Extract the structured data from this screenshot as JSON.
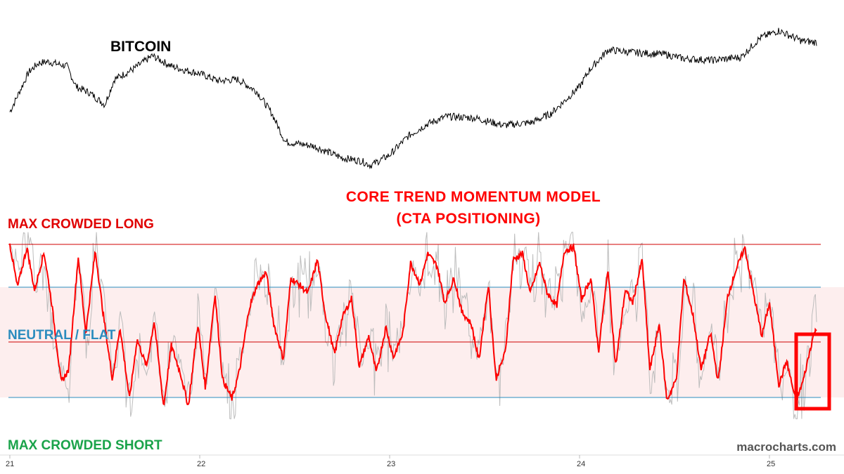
{
  "labels": {
    "bitcoin": "BITCOIN",
    "model_title_line1": "CORE TREND MOMENTUM MODEL",
    "model_title_line2": "(CTA POSITIONING)",
    "max_long": "MAX CROWDED LONG",
    "neutral": "NEUTRAL / FLAT",
    "max_short": "MAX CROWDED SHORT",
    "watermark": "macrocharts.com"
  },
  "colors": {
    "price_line": "#000000",
    "signal_line": "#ff0000",
    "raw_signal": "#bdbdbd",
    "neutral_zone": "#fdeeee",
    "threshold_red": "#d00000",
    "threshold_blue": "#2b8cbe",
    "highlight_box": "#ff0000"
  },
  "chart_data": [
    {
      "type": "line",
      "title": "BITCOIN",
      "x_tick_labels": [
        "21",
        "22",
        "23",
        "24",
        "25"
      ],
      "x": [
        21.0,
        21.1,
        21.15,
        21.2,
        21.3,
        21.35,
        21.42,
        21.5,
        21.55,
        21.65,
        21.75,
        21.85,
        21.93,
        22.0,
        22.1,
        22.2,
        22.3,
        22.38,
        22.45,
        22.6,
        22.75,
        22.85,
        22.9,
        23.0,
        23.1,
        23.2,
        23.3,
        23.45,
        23.6,
        23.75,
        23.85,
        24.0,
        24.05,
        24.15,
        24.3,
        24.45,
        24.55,
        24.7,
        24.85,
        24.95,
        25.05,
        25.1,
        25.17,
        25.25
      ],
      "values": [
        50,
        77,
        83,
        84,
        81,
        67,
        63,
        55,
        72,
        79,
        88,
        81,
        78,
        76,
        71,
        72,
        64,
        49,
        30,
        27,
        19,
        17,
        14,
        21,
        34,
        42,
        47,
        46,
        41,
        43,
        49,
        67,
        78,
        92,
        90,
        89,
        86,
        85,
        87,
        100,
        105,
        102,
        98,
        97
      ],
      "ylim": [
        0,
        110
      ]
    },
    {
      "type": "line",
      "title": "CORE TREND MOMENTUM MODEL (CTA POSITIONING)",
      "x_tick_labels": [
        "21",
        "22",
        "23",
        "24",
        "25"
      ],
      "reference_levels": {
        "max_crowded_long": 100,
        "upper_band": 75,
        "neutral": 50,
        "lower_band": 0
      },
      "neutral_zone": [
        0,
        75
      ],
      "x": [
        21.0,
        21.04,
        21.09,
        21.13,
        21.18,
        21.22,
        21.27,
        21.31,
        21.36,
        21.4,
        21.45,
        21.49,
        21.54,
        21.58,
        21.63,
        21.67,
        21.72,
        21.76,
        21.81,
        21.85,
        21.9,
        21.94,
        21.99,
        22.03,
        22.08,
        22.12,
        22.17,
        22.21,
        22.26,
        22.3,
        22.35,
        22.39,
        22.44,
        22.48,
        22.53,
        22.57,
        22.62,
        22.66,
        22.71,
        22.75,
        22.8,
        22.84,
        22.89,
        22.93,
        22.98,
        23.02,
        23.07,
        23.11,
        23.16,
        23.2,
        23.25,
        23.29,
        23.34,
        23.38,
        23.43,
        23.47,
        23.52,
        23.56,
        23.61,
        23.65,
        23.7,
        23.74,
        23.79,
        23.83,
        23.88,
        23.92,
        23.97,
        24.01,
        24.06,
        24.1,
        24.15,
        24.19,
        24.24,
        24.28,
        24.33,
        24.37,
        24.42,
        24.46,
        24.51,
        24.55,
        24.6,
        24.64,
        24.69,
        24.73,
        24.78,
        24.82,
        24.87,
        24.91,
        24.96,
        25.0,
        25.05,
        25.09,
        25.14,
        25.18,
        25.23,
        25.25
      ],
      "values": [
        100,
        72,
        98,
        70,
        95,
        62,
        10,
        18,
        92,
        42,
        96,
        56,
        12,
        46,
        -1,
        38,
        20,
        50,
        -6,
        34,
        15,
        -6,
        48,
        6,
        68,
        12,
        -1,
        18,
        58,
        73,
        82,
        48,
        25,
        78,
        73,
        68,
        90,
        55,
        28,
        52,
        65,
        20,
        40,
        16,
        46,
        26,
        42,
        88,
        74,
        94,
        86,
        62,
        78,
        56,
        48,
        24,
        74,
        12,
        30,
        90,
        94,
        68,
        88,
        68,
        60,
        96,
        98,
        64,
        78,
        30,
        84,
        20,
        70,
        62,
        90,
        18,
        48,
        -2,
        12,
        78,
        52,
        18,
        42,
        10,
        66,
        82,
        98,
        72,
        40,
        62,
        8,
        24,
        -3,
        12,
        40,
        45
      ]
    }
  ]
}
